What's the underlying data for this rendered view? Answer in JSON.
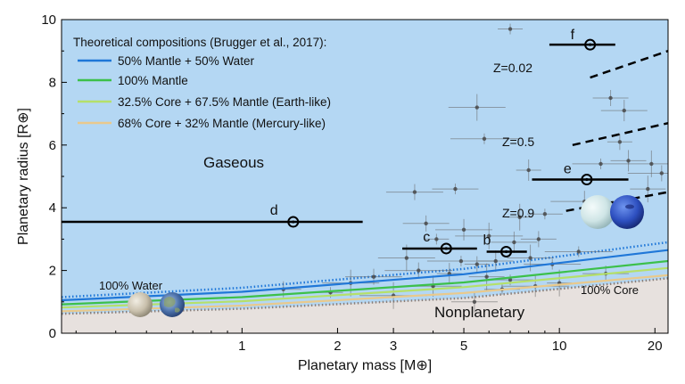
{
  "chart_data": {
    "type": "scatter",
    "xlabel": "Planetary mass [M⊕]",
    "ylabel": "Planetary radius [R⊕]",
    "x_scale": "log",
    "xlim": [
      0.27,
      22
    ],
    "ylim": [
      0,
      10
    ],
    "x_ticks": [
      1,
      2,
      3,
      5,
      10,
      20
    ],
    "y_ticks": [
      0,
      2,
      4,
      6,
      8,
      10
    ],
    "legend": {
      "title": "Theoretical compositions (Brugger et al., 2017):",
      "placement": "top-left",
      "entries": [
        {
          "label": "50% Mantle + 50% Water",
          "color": "#1f77d8"
        },
        {
          "label": "100% Mantle",
          "color": "#3cc04a"
        },
        {
          "label": "32.5% Core + 67.5% Mantle (Earth-like)",
          "color": "#b5e06a"
        },
        {
          "label": "68% Core + 32% Mantle (Mercury-like)",
          "color": "#e9c98c"
        }
      ]
    },
    "regions": {
      "gaseous": "Gaseous",
      "nonplanetary": "Nonplanetary",
      "upper_boundary": "100% Water",
      "lower_boundary": "100% Core"
    },
    "curves": [
      {
        "color": "#1f77d8",
        "points": [
          [
            0.27,
            1.05
          ],
          [
            1,
            1.32
          ],
          [
            5,
            1.88
          ],
          [
            22,
            2.65
          ]
        ]
      },
      {
        "color": "#3cc04a",
        "points": [
          [
            0.27,
            0.92
          ],
          [
            1,
            1.15
          ],
          [
            5,
            1.62
          ],
          [
            22,
            2.3
          ]
        ]
      },
      {
        "color": "#b5e06a",
        "points": [
          [
            0.27,
            0.82
          ],
          [
            1,
            1.02
          ],
          [
            5,
            1.47
          ],
          [
            22,
            2.08
          ]
        ]
      },
      {
        "color": "#e9c98c",
        "points": [
          [
            0.27,
            0.7
          ],
          [
            1,
            0.88
          ],
          [
            5,
            1.28
          ],
          [
            22,
            1.85
          ]
        ]
      }
    ],
    "boundaries": {
      "water": [
        [
          0.27,
          1.15
        ],
        [
          1,
          1.45
        ],
        [
          5,
          2.05
        ],
        [
          22,
          2.9
        ]
      ],
      "core": [
        [
          0.27,
          0.62
        ],
        [
          1,
          0.78
        ],
        [
          5,
          1.12
        ],
        [
          22,
          1.75
        ]
      ]
    },
    "z_lines": [
      {
        "label": "Z=0.02",
        "points": [
          [
            12.5,
            8.15
          ],
          [
            22,
            9.0
          ]
        ]
      },
      {
        "label": "Z=0.5",
        "points": [
          [
            11,
            6.0
          ],
          [
            22,
            6.7
          ]
        ]
      },
      {
        "label": "Z=0.9",
        "points": [
          [
            10.5,
            3.9
          ],
          [
            22,
            4.5
          ]
        ]
      }
    ],
    "highlighted_planets": [
      {
        "label": "d",
        "mass": 1.45,
        "radius": 3.55,
        "mass_lo": 0.27,
        "mass_hi": 2.4
      },
      {
        "label": "c",
        "mass": 4.4,
        "radius": 2.7,
        "mass_lo": 3.2,
        "mass_hi": 5.5
      },
      {
        "label": "b",
        "mass": 6.8,
        "radius": 2.6,
        "mass_lo": 5.9,
        "mass_hi": 7.9
      },
      {
        "label": "e",
        "mass": 12.2,
        "radius": 4.9,
        "mass_lo": 8.2,
        "mass_hi": 16.5
      },
      {
        "label": "f",
        "mass": 12.5,
        "radius": 9.2,
        "mass_lo": 9.3,
        "mass_hi": 15.0
      }
    ],
    "background_planets": [
      {
        "mass": 7.0,
        "radius": 9.7
      },
      {
        "mass": 14.5,
        "radius": 7.5
      },
      {
        "mass": 16.0,
        "radius": 7.1
      },
      {
        "mass": 5.5,
        "radius": 7.2
      },
      {
        "mass": 5.8,
        "radius": 6.2
      },
      {
        "mass": 15.5,
        "radius": 6.1
      },
      {
        "mass": 16.5,
        "radius": 5.5
      },
      {
        "mass": 19.5,
        "radius": 5.4
      },
      {
        "mass": 13.5,
        "radius": 5.4
      },
      {
        "mass": 21.0,
        "radius": 5.1
      },
      {
        "mass": 8.0,
        "radius": 5.2
      },
      {
        "mass": 19.0,
        "radius": 4.6
      },
      {
        "mass": 4.7,
        "radius": 4.6
      },
      {
        "mass": 3.5,
        "radius": 4.5
      },
      {
        "mass": 12.0,
        "radius": 4.2
      },
      {
        "mass": 7.5,
        "radius": 3.7
      },
      {
        "mass": 9.0,
        "radius": 3.8
      },
      {
        "mass": 3.8,
        "radius": 3.5
      },
      {
        "mass": 5.0,
        "radius": 3.3
      },
      {
        "mass": 6.0,
        "radius": 3.1
      },
      {
        "mass": 4.1,
        "radius": 3.0
      },
      {
        "mass": 8.6,
        "radius": 3.0
      },
      {
        "mass": 7.2,
        "radius": 2.9
      },
      {
        "mass": 3.3,
        "radius": 2.4
      },
      {
        "mass": 4.9,
        "radius": 2.3
      },
      {
        "mass": 5.5,
        "radius": 2.2
      },
      {
        "mass": 6.3,
        "radius": 2.3
      },
      {
        "mass": 8.1,
        "radius": 2.4
      },
      {
        "mass": 9.5,
        "radius": 2.2
      },
      {
        "mass": 3.6,
        "radius": 2.0
      },
      {
        "mass": 4.5,
        "radius": 1.9
      },
      {
        "mass": 5.9,
        "radius": 1.8
      },
      {
        "mass": 7.0,
        "radius": 1.7
      },
      {
        "mass": 2.6,
        "radius": 1.8
      },
      {
        "mass": 8.4,
        "radius": 1.5
      },
      {
        "mass": 10.0,
        "radius": 1.6
      },
      {
        "mass": 6.6,
        "radius": 1.4
      },
      {
        "mass": 14.0,
        "radius": 1.9
      },
      {
        "mass": 4.0,
        "radius": 1.5
      },
      {
        "mass": 3.0,
        "radius": 1.2
      },
      {
        "mass": 1.9,
        "radius": 1.3
      },
      {
        "mass": 1.35,
        "radius": 1.4
      },
      {
        "mass": 5.4,
        "radius": 1.0
      },
      {
        "mass": 2.2,
        "radius": 1.6
      },
      {
        "mass": 11.5,
        "radius": 2.6
      }
    ]
  },
  "colors": {
    "gaseous_bg": "#b4d7f3",
    "nonplanetary_bg": "#e7e1de",
    "highlight": "#000000",
    "background_points": "#555555"
  },
  "icons": [
    "water-planet-icon",
    "earth-planet-icon",
    "ice-giant-icon",
    "neptune-icon"
  ]
}
